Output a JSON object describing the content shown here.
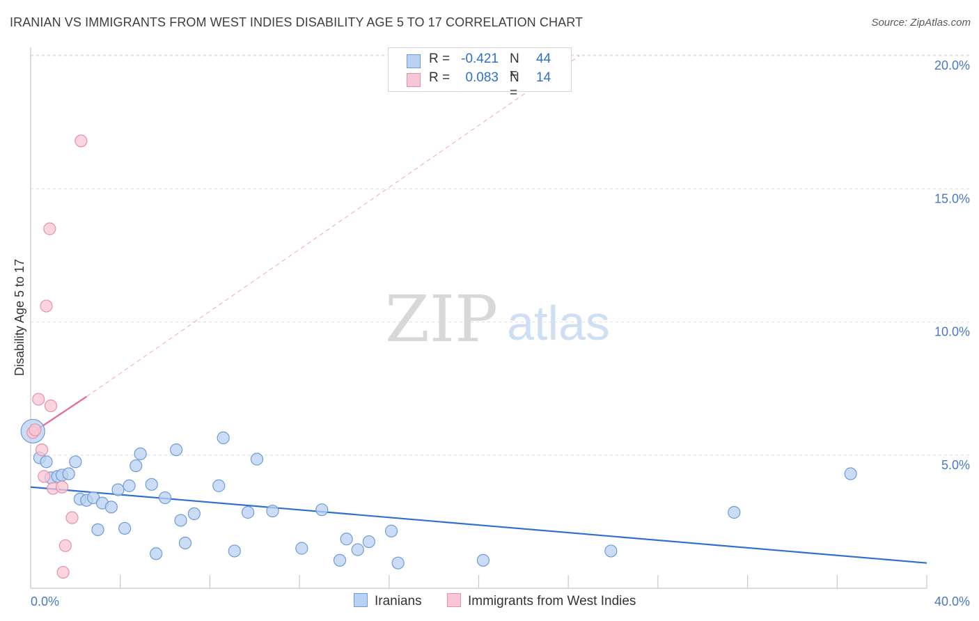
{
  "title": "IRANIAN VS IMMIGRANTS FROM WEST INDIES DISABILITY AGE 5 TO 17 CORRELATION CHART",
  "source": "Source: ZipAtlas.com",
  "legend": {
    "rows": [
      {
        "r_label": "R =",
        "r_value": "-0.421",
        "n_label": "N =",
        "n_value": "44"
      },
      {
        "r_label": "R =",
        "r_value": "0.083",
        "n_label": "N =",
        "n_value": "14"
      }
    ]
  },
  "bottom_legend": {
    "iranians": "Iranians",
    "west_indies": "Immigrants from West Indies"
  },
  "watermark": {
    "zip": "ZIP",
    "atlas": "atlas"
  },
  "colors": {
    "blue_fill": "#b9d2f3",
    "blue_stroke": "#6e9bd8",
    "blue_line": "#2f6fce",
    "pink_fill": "#f8c6d4",
    "pink_stroke": "#e890aa",
    "pink_line": "#e8688f",
    "grid": "#dddddd",
    "axis_text": "#4a78c2"
  },
  "chart_data": {
    "type": "scatter",
    "title": "IRANIAN VS IMMIGRANTS FROM WEST INDIES DISABILITY AGE 5 TO 17 CORRELATION CHART",
    "xlabel": "",
    "ylabel": "Disability Age 5 to 17",
    "xlim": [
      0,
      40
    ],
    "ylim": [
      0,
      20.9
    ],
    "x_tick_labels": [
      "0.0%",
      "40.0%"
    ],
    "y_ticks": [
      5,
      10,
      15,
      20
    ],
    "y_tick_labels": [
      "5.0%",
      "10.0%",
      "15.0%",
      "20.0%"
    ],
    "series": [
      {
        "name": "Iranians",
        "color": "blue",
        "r": -0.421,
        "n": 44,
        "trend": {
          "x": [
            0,
            40
          ],
          "y": [
            3.8,
            0.95
          ],
          "dashed_extension": false
        },
        "points": [
          {
            "x": 0.1,
            "y": 5.9,
            "big": true
          },
          {
            "x": 0.4,
            "y": 4.9
          },
          {
            "x": 0.7,
            "y": 4.75
          },
          {
            "x": 0.9,
            "y": 4.15
          },
          {
            "x": 1.2,
            "y": 4.2
          },
          {
            "x": 1.4,
            "y": 4.25
          },
          {
            "x": 1.7,
            "y": 4.3
          },
          {
            "x": 2.0,
            "y": 4.75
          },
          {
            "x": 2.2,
            "y": 3.35
          },
          {
            "x": 2.5,
            "y": 3.3
          },
          {
            "x": 2.8,
            "y": 3.4
          },
          {
            "x": 3.0,
            "y": 2.2
          },
          {
            "x": 3.2,
            "y": 3.2
          },
          {
            "x": 3.6,
            "y": 3.05
          },
          {
            "x": 3.9,
            "y": 3.7
          },
          {
            "x": 4.2,
            "y": 2.25
          },
          {
            "x": 4.4,
            "y": 3.85
          },
          {
            "x": 4.7,
            "y": 4.6
          },
          {
            "x": 4.9,
            "y": 5.05
          },
          {
            "x": 5.4,
            "y": 3.9
          },
          {
            "x": 5.6,
            "y": 1.3
          },
          {
            "x": 6.0,
            "y": 3.4
          },
          {
            "x": 6.5,
            "y": 5.2
          },
          {
            "x": 6.7,
            "y": 2.55
          },
          {
            "x": 6.9,
            "y": 1.7
          },
          {
            "x": 7.3,
            "y": 2.8
          },
          {
            "x": 8.4,
            "y": 3.85
          },
          {
            "x": 8.6,
            "y": 5.65
          },
          {
            "x": 9.1,
            "y": 1.4
          },
          {
            "x": 9.7,
            "y": 2.85
          },
          {
            "x": 10.1,
            "y": 4.85
          },
          {
            "x": 10.8,
            "y": 2.9
          },
          {
            "x": 12.1,
            "y": 1.5
          },
          {
            "x": 13.0,
            "y": 2.95
          },
          {
            "x": 13.8,
            "y": 1.05
          },
          {
            "x": 14.1,
            "y": 1.85
          },
          {
            "x": 14.6,
            "y": 1.45
          },
          {
            "x": 15.1,
            "y": 1.75
          },
          {
            "x": 16.1,
            "y": 2.15
          },
          {
            "x": 16.4,
            "y": 0.95
          },
          {
            "x": 20.2,
            "y": 1.05
          },
          {
            "x": 25.9,
            "y": 1.4
          },
          {
            "x": 31.4,
            "y": 2.85
          },
          {
            "x": 36.6,
            "y": 4.3
          }
        ]
      },
      {
        "name": "Immigrants from West Indies",
        "color": "pink",
        "r": 0.083,
        "n": 14,
        "trend": {
          "x": [
            0,
            2.5
          ],
          "y": [
            5.8,
            7.2
          ],
          "dashed_extension": true,
          "extension_to": {
            "x": 24.5,
            "y": 20.0
          }
        },
        "points": [
          {
            "x": 0.1,
            "y": 5.85
          },
          {
            "x": 0.2,
            "y": 5.95
          },
          {
            "x": 0.35,
            "y": 7.1
          },
          {
            "x": 0.5,
            "y": 5.2
          },
          {
            "x": 0.6,
            "y": 4.2
          },
          {
            "x": 0.7,
            "y": 10.6
          },
          {
            "x": 0.85,
            "y": 13.5
          },
          {
            "x": 0.9,
            "y": 6.85
          },
          {
            "x": 1.0,
            "y": 3.75
          },
          {
            "x": 1.4,
            "y": 3.8
          },
          {
            "x": 1.55,
            "y": 1.6
          },
          {
            "x": 1.45,
            "y": 0.6
          },
          {
            "x": 1.85,
            "y": 2.65
          },
          {
            "x": 2.25,
            "y": 16.8
          }
        ]
      }
    ]
  }
}
